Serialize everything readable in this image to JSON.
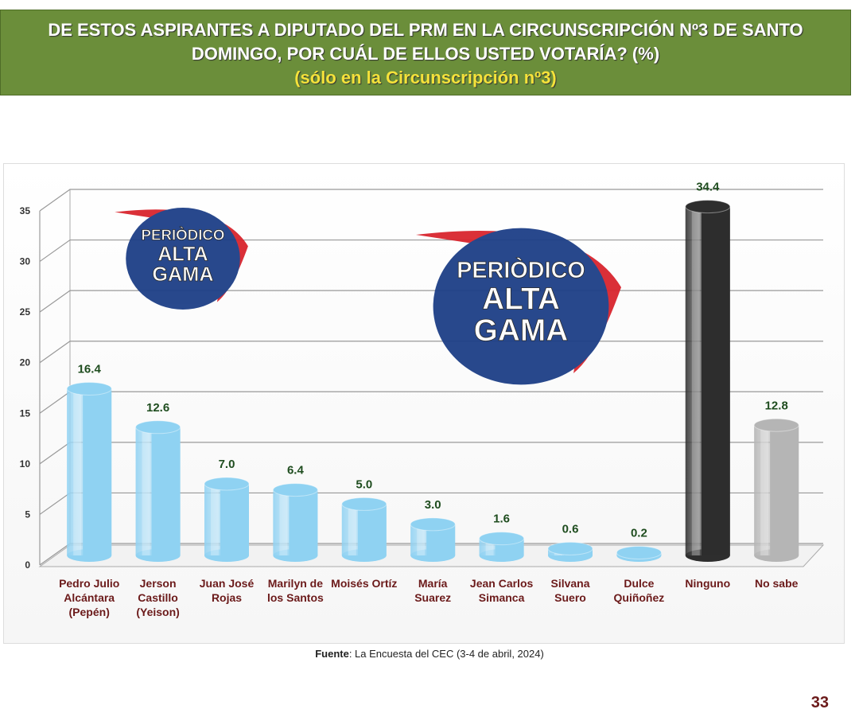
{
  "chart_data": {
    "type": "bar",
    "title": "DE ESTOS ASPIRANTES A DIPUTADO DEL PRM EN LA CIRCUNSCRIPCIÓN Nº3 DE SANTO DOMINGO, POR CUÁL DE ELLOS USTED VOTARÍA? (%)",
    "subtitle": "(sólo en la Circunscripción nº3)",
    "categories": [
      "Pedro Julio Alcántara (Pepén)",
      "Jerson Castillo (Yeison)",
      "Juan José Rojas",
      "Marilyn de los Santos",
      "Moisés Ortíz",
      "María Suarez",
      "Jean Carlos Simanca",
      "Silvana Suero",
      "Dulce Quiñoñez",
      "Ninguno",
      "No sabe"
    ],
    "values": [
      16.4,
      12.6,
      7.0,
      6.4,
      5.0,
      3.0,
      1.6,
      0.6,
      0.2,
      34.4,
      12.8
    ],
    "value_labels": [
      "16.4",
      "12.6",
      "7.0",
      "6.4",
      "5.0",
      "3.0",
      "1.6",
      "0.6",
      "0.2",
      "34.4",
      "12.8"
    ],
    "colors": [
      "#8fd2f2",
      "#8fd2f2",
      "#8fd2f2",
      "#8fd2f2",
      "#8fd2f2",
      "#8fd2f2",
      "#8fd2f2",
      "#8fd2f2",
      "#8fd2f2",
      "#2e2e2e",
      "#b5b5b5"
    ],
    "ylim": [
      0,
      35
    ],
    "yticks": [
      0,
      5,
      10,
      15,
      20,
      25,
      30,
      35
    ],
    "grid": true,
    "source_label": "Fuente",
    "source_text": ": La Encuesta del CEC (3-4 de abril, 2024)",
    "watermark": [
      "PERIÒDICO",
      "ALTA",
      "GAMA"
    ],
    "page_number": "33"
  }
}
